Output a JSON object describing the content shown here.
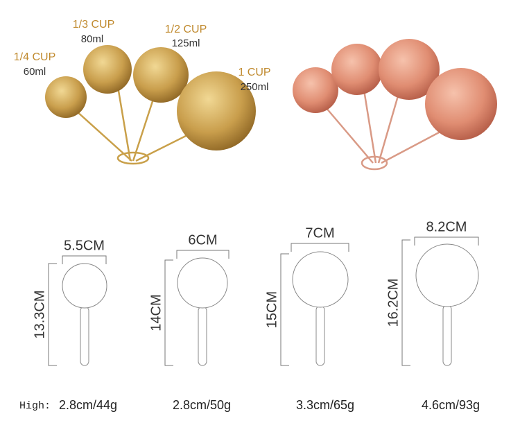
{
  "cups": [
    {
      "size": "1/4 CUP",
      "volume": "60ml"
    },
    {
      "size": "1/3 CUP",
      "volume": "80ml"
    },
    {
      "size": "1/2 CUP",
      "volume": "125ml"
    },
    {
      "size": "1 CUP",
      "volume": "250ml"
    }
  ],
  "diagrams": [
    {
      "width": "5.5CM",
      "length": "13.3CM",
      "weight": "2.8cm/44g"
    },
    {
      "width": "6CM",
      "length": "14CM",
      "weight": "2.8cm/50g"
    },
    {
      "width": "7CM",
      "length": "15CM",
      "weight": "3.3cm/65g"
    },
    {
      "width": "8.2CM",
      "length": "16.2CM",
      "weight": "4.6cm/93g"
    }
  ],
  "high_label": "High:"
}
